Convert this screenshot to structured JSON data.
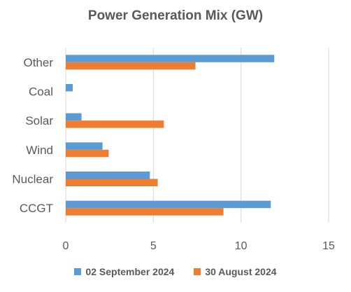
{
  "chart_data": {
    "type": "bar",
    "orientation": "horizontal",
    "title": "Power Generation Mix (GW)",
    "xlabel": "",
    "ylabel": "",
    "categories": [
      "Other",
      "Coal",
      "Solar",
      "Wind",
      "Nuclear",
      "CCGT"
    ],
    "series": [
      {
        "name": "02 September 2024",
        "color": "#5B9BD5",
        "values": [
          11.9,
          0.4,
          0.9,
          2.1,
          4.8,
          11.7
        ]
      },
      {
        "name": "30 August 2024",
        "color": "#ED7D31",
        "values": [
          7.4,
          0,
          5.6,
          2.45,
          5.25,
          9.0
        ]
      }
    ],
    "xlim": [
      0,
      15
    ],
    "xticks": [
      0,
      5,
      10,
      15
    ],
    "xtick_labels": [
      "0",
      "5",
      "10",
      "15"
    ],
    "grid": "vertical",
    "legend_position": "bottom"
  }
}
